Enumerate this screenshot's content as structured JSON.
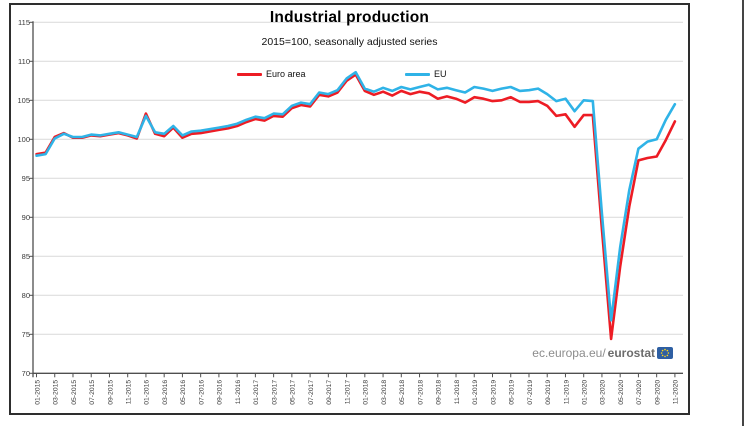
{
  "chart": {
    "title": "Industrial production",
    "subtitle": "2015=100, seasonally adjusted series",
    "watermark_prefix": "ec.europa.eu/",
    "watermark_bold": "eurostat",
    "colors": {
      "euro_area": "#ed1c24",
      "eu": "#2fb3e7",
      "grid": "#d9d9d9",
      "axis": "#4f4f4f",
      "tick_text": "#3a3a3a",
      "eurostat_logo_blue": "#2e5fa3",
      "eurostat_logo_stars": "#ffd617"
    }
  },
  "chart_data": {
    "type": "line",
    "title": "Industrial production",
    "subtitle": "2015=100, seasonally adjusted series",
    "grid": true,
    "legend_position": "top-inside",
    "ylim": [
      70,
      115
    ],
    "ytick_step": 5,
    "y_tick_labels": [
      115,
      110,
      105,
      100,
      95,
      90,
      85,
      80,
      75,
      70
    ],
    "x": [
      "01-2015",
      "02-2015",
      "03-2015",
      "04-2015",
      "05-2015",
      "06-2015",
      "07-2015",
      "08-2015",
      "09-2015",
      "10-2015",
      "11-2015",
      "12-2015",
      "01-2016",
      "02-2016",
      "03-2016",
      "04-2016",
      "05-2016",
      "06-2016",
      "07-2016",
      "08-2016",
      "09-2016",
      "10-2016",
      "11-2016",
      "12-2016",
      "01-2017",
      "02-2017",
      "03-2017",
      "04-2017",
      "05-2017",
      "06-2017",
      "07-2017",
      "08-2017",
      "09-2017",
      "10-2017",
      "11-2017",
      "12-2017",
      "01-2018",
      "02-2018",
      "03-2018",
      "04-2018",
      "05-2018",
      "06-2018",
      "07-2018",
      "08-2018",
      "09-2018",
      "10-2018",
      "11-2018",
      "12-2018",
      "01-2019",
      "02-2019",
      "03-2019",
      "04-2019",
      "05-2019",
      "06-2019",
      "07-2019",
      "08-2019",
      "09-2019",
      "10-2019",
      "11-2019",
      "12-2019",
      "01-2020",
      "02-2020",
      "03-2020",
      "04-2020",
      "05-2020",
      "06-2020",
      "07-2020",
      "08-2020",
      "09-2020",
      "10-2020",
      "11-2020"
    ],
    "x_tick_labels": [
      "01-2015",
      "03-2015",
      "05-2015",
      "07-2015",
      "09-2015",
      "11-2015",
      "01-2016",
      "03-2016",
      "05-2016",
      "07-2016",
      "09-2016",
      "11-2016",
      "01-2017",
      "03-2017",
      "05-2017",
      "07-2017",
      "09-2017",
      "11-2017",
      "01-2018",
      "03-2018",
      "05-2018",
      "07-2018",
      "09-2018",
      "11-2018",
      "01-2019",
      "03-2019",
      "05-2019",
      "07-2019",
      "09-2019",
      "11-2019",
      "01-2020",
      "03-2020",
      "05-2020",
      "07-2020",
      "09-2020",
      "11-2020"
    ],
    "series": [
      {
        "name": "Euro area",
        "color": "#ed1c24",
        "values": [
          98.1,
          98.3,
          100.3,
          100.8,
          100.2,
          100.2,
          100.5,
          100.4,
          100.6,
          100.8,
          100.5,
          100.1,
          103.3,
          100.7,
          100.4,
          101.5,
          100.2,
          100.7,
          100.8,
          101.0,
          101.2,
          101.4,
          101.7,
          102.2,
          102.6,
          102.4,
          103.0,
          102.9,
          104.0,
          104.4,
          104.2,
          105.7,
          105.5,
          106.0,
          107.5,
          108.3,
          106.2,
          105.7,
          106.1,
          105.6,
          106.2,
          105.8,
          106.1,
          105.9,
          105.2,
          105.5,
          105.2,
          104.7,
          105.4,
          105.2,
          104.9,
          105.0,
          105.4,
          104.8,
          104.8,
          104.9,
          104.3,
          103.0,
          103.2,
          101.6,
          103.1,
          103.1,
          88.5,
          74.4,
          83.7,
          91.4,
          97.3,
          97.6,
          97.8,
          99.9,
          102.3
        ]
      },
      {
        "name": "EU",
        "color": "#2fb3e7",
        "values": [
          97.9,
          98.1,
          100.1,
          100.7,
          100.3,
          100.3,
          100.6,
          100.5,
          100.7,
          100.9,
          100.6,
          100.3,
          103.0,
          100.9,
          100.7,
          101.7,
          100.5,
          101.0,
          101.1,
          101.3,
          101.5,
          101.7,
          102.0,
          102.5,
          102.9,
          102.7,
          103.3,
          103.2,
          104.3,
          104.7,
          104.5,
          106.0,
          105.8,
          106.3,
          107.8,
          108.6,
          106.5,
          106.1,
          106.6,
          106.2,
          106.7,
          106.4,
          106.7,
          107.0,
          106.4,
          106.6,
          106.3,
          106.0,
          106.7,
          106.5,
          106.2,
          106.5,
          106.7,
          106.2,
          106.3,
          106.5,
          105.8,
          104.9,
          105.2,
          103.6,
          105.0,
          104.9,
          90.5,
          76.8,
          86.2,
          93.5,
          98.8,
          99.7,
          100.0,
          102.5,
          104.5
        ]
      }
    ]
  }
}
